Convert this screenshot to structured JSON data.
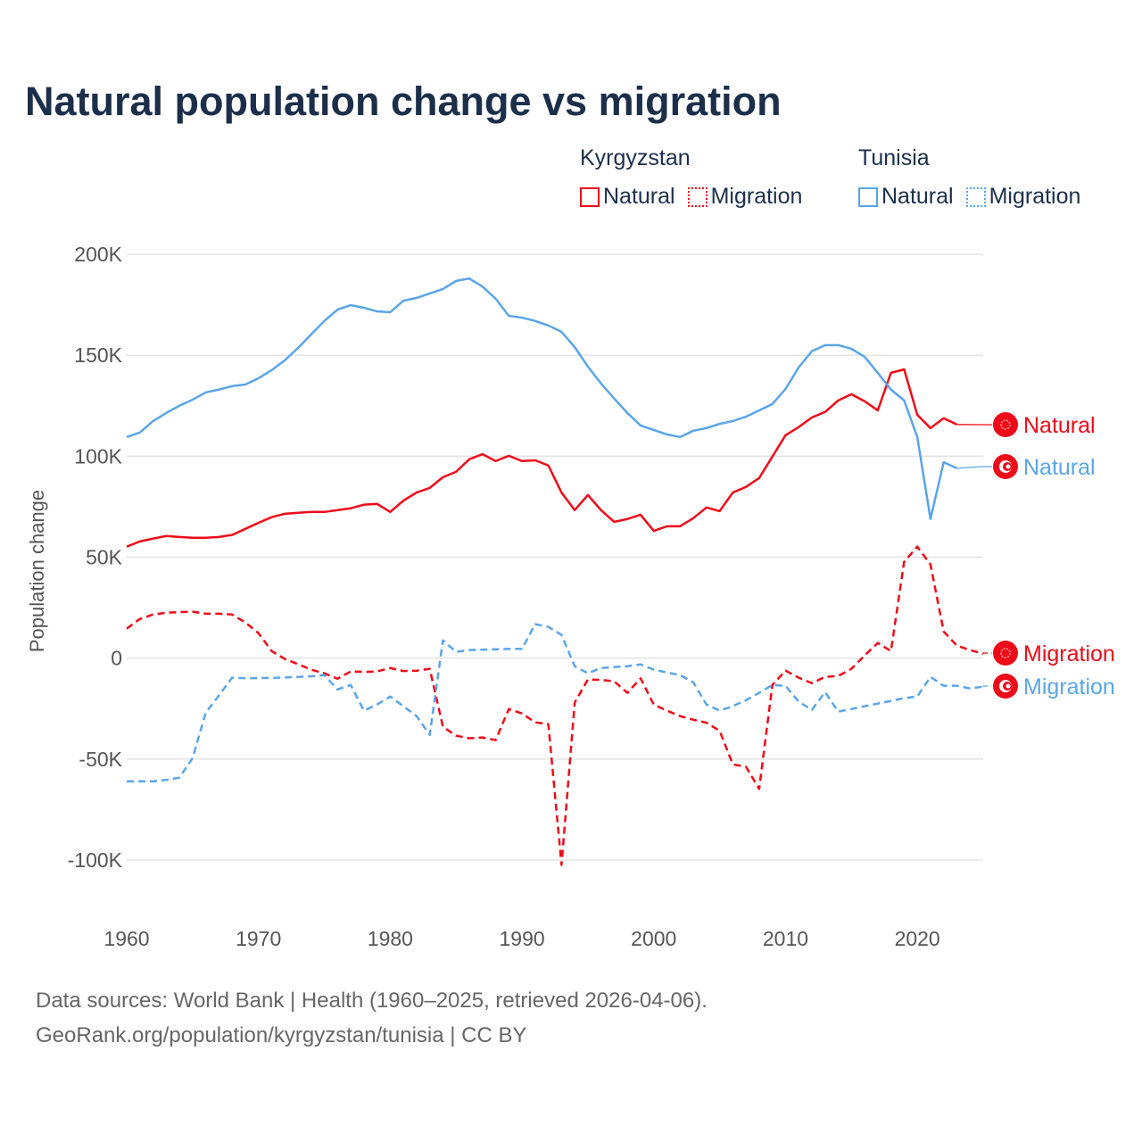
{
  "title": "Natural population change vs migration",
  "legend": {
    "groups": [
      {
        "label": "Kyrgyzstan",
        "items": [
          {
            "label": "Natural",
            "style": "solid"
          },
          {
            "label": "Migration",
            "style": "dotted"
          }
        ],
        "color": "#ee0a18"
      },
      {
        "label": "Tunisia",
        "items": [
          {
            "label": "Natural",
            "style": "solid"
          },
          {
            "label": "Migration",
            "style": "dotted"
          }
        ],
        "color": "#5aa5e8"
      }
    ]
  },
  "footer": {
    "line1": "Data sources: World Bank | Health (1960–2025, retrieved 2026-04-06).",
    "line2": "GeoRank.org/population/kyrgyzstan/tunisia | CC BY"
  },
  "chart_data": {
    "type": "line",
    "title": "Natural population change vs migration",
    "xlabel": "",
    "ylabel": "Population change",
    "xlim": [
      1960,
      2025
    ],
    "ylim": [
      -100000,
      200000
    ],
    "x_ticks": [
      1960,
      1970,
      1980,
      1990,
      2000,
      2010,
      2020
    ],
    "x_tick_labels": [
      "1960",
      "1970",
      "1980",
      "1990",
      "2000",
      "2010",
      "2020"
    ],
    "y_ticks": [
      200000,
      150000,
      100000,
      50000,
      0,
      -50000,
      -100000
    ],
    "y_tick_labels": [
      "200K",
      "150K",
      "100K",
      "50K",
      "0",
      "-50K",
      "-100K"
    ],
    "grid": true,
    "legend_placement": "top-right",
    "x_start": 1960,
    "series": [
      {
        "name": "Kyrgyzstan Natural",
        "end_label": "Natural",
        "country": "Kyrgyzstan",
        "color": "#ee0a18",
        "dash": "solid",
        "values_k": [
          55.2,
          57.8,
          59.2,
          60.5,
          60,
          59.6,
          59.6,
          60,
          61,
          64,
          67,
          69.8,
          71.5,
          72,
          72.4,
          72.4,
          73.3,
          74.2,
          76,
          76.4,
          72.4,
          78,
          82,
          84.3,
          89.6,
          92.3,
          98.5,
          101,
          97.6,
          100.2,
          97.6,
          98,
          95.4,
          82,
          73.3,
          80.8,
          73.3,
          67.5,
          68.9,
          71,
          63,
          65.3,
          65.3,
          69.3,
          74.6,
          72.8,
          82,
          84.8,
          89.2,
          99.8,
          110.4,
          114.4,
          119.2,
          121.9,
          127.6,
          130.7,
          127.2,
          122.7,
          141.3,
          143,
          120.5,
          113.9,
          118.8,
          115.7
        ]
      },
      {
        "name": "Tunisia Natural",
        "end_label": "Natural",
        "country": "Tunisia",
        "color": "#5aa5e8",
        "dash": "solid",
        "values_k": [
          109.5,
          111.7,
          117.4,
          121.4,
          125,
          128,
          131.6,
          133,
          134.7,
          135.5,
          138.6,
          142.6,
          147.5,
          153.6,
          160.3,
          167,
          172.6,
          174.8,
          173.5,
          171.7,
          171.3,
          177,
          178.4,
          180.6,
          182.8,
          186.8,
          188,
          184,
          178,
          169.5,
          168.6,
          167,
          164.7,
          161.6,
          154,
          144.4,
          136,
          128.5,
          121.4,
          115.2,
          113,
          110.8,
          109.5,
          112.6,
          113.9,
          116,
          117.4,
          119.6,
          122.7,
          125.8,
          133.3,
          144,
          152,
          155,
          155,
          153.2,
          149.2,
          141.3,
          133,
          127.6,
          109.5,
          68.9,
          97,
          94
        ]
      },
      {
        "name": "Kyrgyzstan Migration",
        "end_label": "Migration",
        "country": "Kyrgyzstan",
        "color": "#ee0a18",
        "dash": "dashed",
        "values_k": [
          14.6,
          19.4,
          21.6,
          22.5,
          22.8,
          23,
          22,
          22,
          21.6,
          17.7,
          12.4,
          3.5,
          -0.4,
          -3,
          -5.7,
          -7.5,
          -10.2,
          -6.6,
          -6.8,
          -6.6,
          -4.9,
          -6.4,
          -6.2,
          -5.3,
          -34,
          -38.4,
          -39.7,
          -39.3,
          -40.6,
          -25.2,
          -27.4,
          -31.8,
          -32.7,
          -102.4,
          -22,
          -10.6,
          -10.8,
          -11.5,
          -17.2,
          -10,
          -23,
          -26,
          -28.7,
          -30.5,
          -32,
          -36,
          -52.6,
          -53.8,
          -64.8,
          -13.3,
          -6.2,
          -9.7,
          -12.4,
          -9.3,
          -8.8,
          -5.3,
          1.3,
          7.5,
          3.5,
          47.7,
          55.2,
          46.4,
          13.2,
          6.2,
          4,
          2.2
        ]
      },
      {
        "name": "Tunisia Migration",
        "end_label": "Migration",
        "country": "Tunisia",
        "color": "#5aa5e8",
        "dash": "dashed",
        "values_k": [
          -61,
          -61,
          -61,
          -60.3,
          -59.2,
          -49.5,
          -27,
          -18.5,
          -9.7,
          -9.9,
          -9.9,
          -9.8,
          -9.6,
          -9.3,
          -9,
          -8.4,
          -15.5,
          -13.3,
          -26,
          -23,
          -19,
          -23.8,
          -28.7,
          -38,
          8.8,
          3.1,
          4,
          4.2,
          4.4,
          4.6,
          4.6,
          16.8,
          15.5,
          11.5,
          -4,
          -7.5,
          -4.9,
          -4.4,
          -4,
          -3.1,
          -5.7,
          -7.1,
          -8.4,
          -12,
          -23,
          -26,
          -23.8,
          -20.8,
          -17.2,
          -13.3,
          -13.7,
          -21.6,
          -25.6,
          -16.8,
          -26.5,
          -25.2,
          -23.8,
          -22.5,
          -21.2,
          -19.8,
          -19,
          -9.3,
          -13.7,
          -13.7,
          -15,
          -14.1
        ]
      }
    ]
  }
}
